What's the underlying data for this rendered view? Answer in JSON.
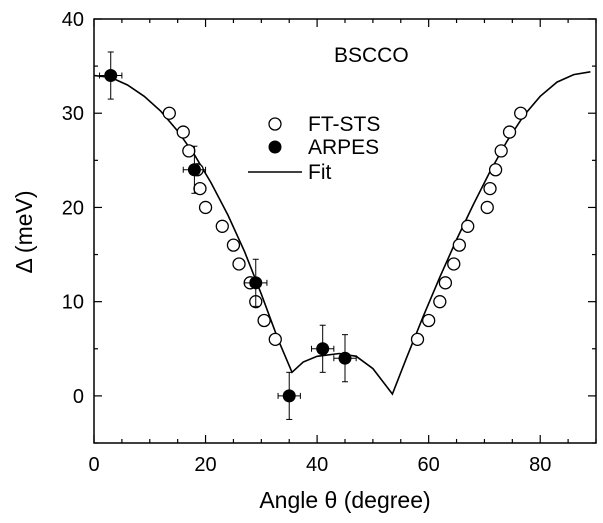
{
  "chart_data": {
    "type": "scatter",
    "title": "",
    "annotation": "BSCCO",
    "xlabel": "Angle θ (degree)",
    "ylabel": "Δ (meV)",
    "xlim": [
      0,
      90
    ],
    "ylim": [
      -5,
      40
    ],
    "x_ticks": [
      0,
      20,
      40,
      60,
      80
    ],
    "y_ticks": [
      0,
      10,
      20,
      30,
      40
    ],
    "grid": false,
    "legend_position": "top-center",
    "series": [
      {
        "name": "FT-STS",
        "marker": "open-circle",
        "points": [
          [
            13.5,
            30.0
          ],
          [
            16.0,
            28.0
          ],
          [
            17.0,
            26.0
          ],
          [
            18.5,
            24.0
          ],
          [
            19.0,
            22.0
          ],
          [
            20.0,
            20.0
          ],
          [
            23.0,
            18.0
          ],
          [
            25.0,
            16.0
          ],
          [
            26.0,
            14.0
          ],
          [
            28.0,
            12.0
          ],
          [
            29.0,
            10.0
          ],
          [
            30.5,
            8.0
          ],
          [
            32.5,
            6.0
          ],
          [
            58.0,
            6.0
          ],
          [
            60.0,
            8.0
          ],
          [
            62.0,
            10.0
          ],
          [
            63.0,
            12.0
          ],
          [
            64.5,
            14.0
          ],
          [
            65.5,
            16.0
          ],
          [
            67.0,
            18.0
          ],
          [
            70.5,
            20.0
          ],
          [
            71.0,
            22.0
          ],
          [
            72.0,
            24.0
          ],
          [
            73.0,
            26.0
          ],
          [
            74.5,
            28.0
          ],
          [
            76.5,
            30.0
          ]
        ]
      },
      {
        "name": "ARPES",
        "marker": "filled-circle",
        "points": [
          {
            "x": 3.0,
            "y": 34.0,
            "xerr": 2.0,
            "yerr": 2.5
          },
          {
            "x": 18.0,
            "y": 24.0,
            "xerr": 2.0,
            "yerr": 2.5
          },
          {
            "x": 29.0,
            "y": 12.0,
            "xerr": 2.0,
            "yerr": 2.5
          },
          {
            "x": 35.0,
            "y": 0.0,
            "xerr": 2.0,
            "yerr": 2.5
          },
          {
            "x": 41.0,
            "y": 5.0,
            "xerr": 2.0,
            "yerr": 2.5
          },
          {
            "x": 45.0,
            "y": 4.0,
            "xerr": 2.0,
            "yerr": 2.5
          }
        ]
      },
      {
        "name": "Fit",
        "marker": "line",
        "points": [
          [
            0,
            34.0
          ],
          [
            3,
            33.8
          ],
          [
            6,
            33.0
          ],
          [
            9,
            31.8
          ],
          [
            12,
            30.2
          ],
          [
            15,
            28.1
          ],
          [
            18,
            25.6
          ],
          [
            21,
            22.6
          ],
          [
            24,
            19.2
          ],
          [
            27,
            15.3
          ],
          [
            30,
            10.8
          ],
          [
            33,
            6.0
          ],
          [
            35.5,
            2.5
          ],
          [
            37.5,
            3.6
          ],
          [
            40,
            4.2
          ],
          [
            44,
            4.5
          ],
          [
            47,
            4.2
          ],
          [
            50,
            2.9
          ],
          [
            53.5,
            0.2
          ],
          [
            56,
            4.0
          ],
          [
            59,
            8.4
          ],
          [
            62,
            12.6
          ],
          [
            65,
            16.6
          ],
          [
            68,
            20.3
          ],
          [
            71,
            23.8
          ],
          [
            74,
            27.0
          ],
          [
            77,
            29.7
          ],
          [
            80,
            31.8
          ],
          [
            83,
            33.3
          ],
          [
            86,
            34.1
          ],
          [
            89,
            34.4
          ]
        ]
      }
    ]
  }
}
